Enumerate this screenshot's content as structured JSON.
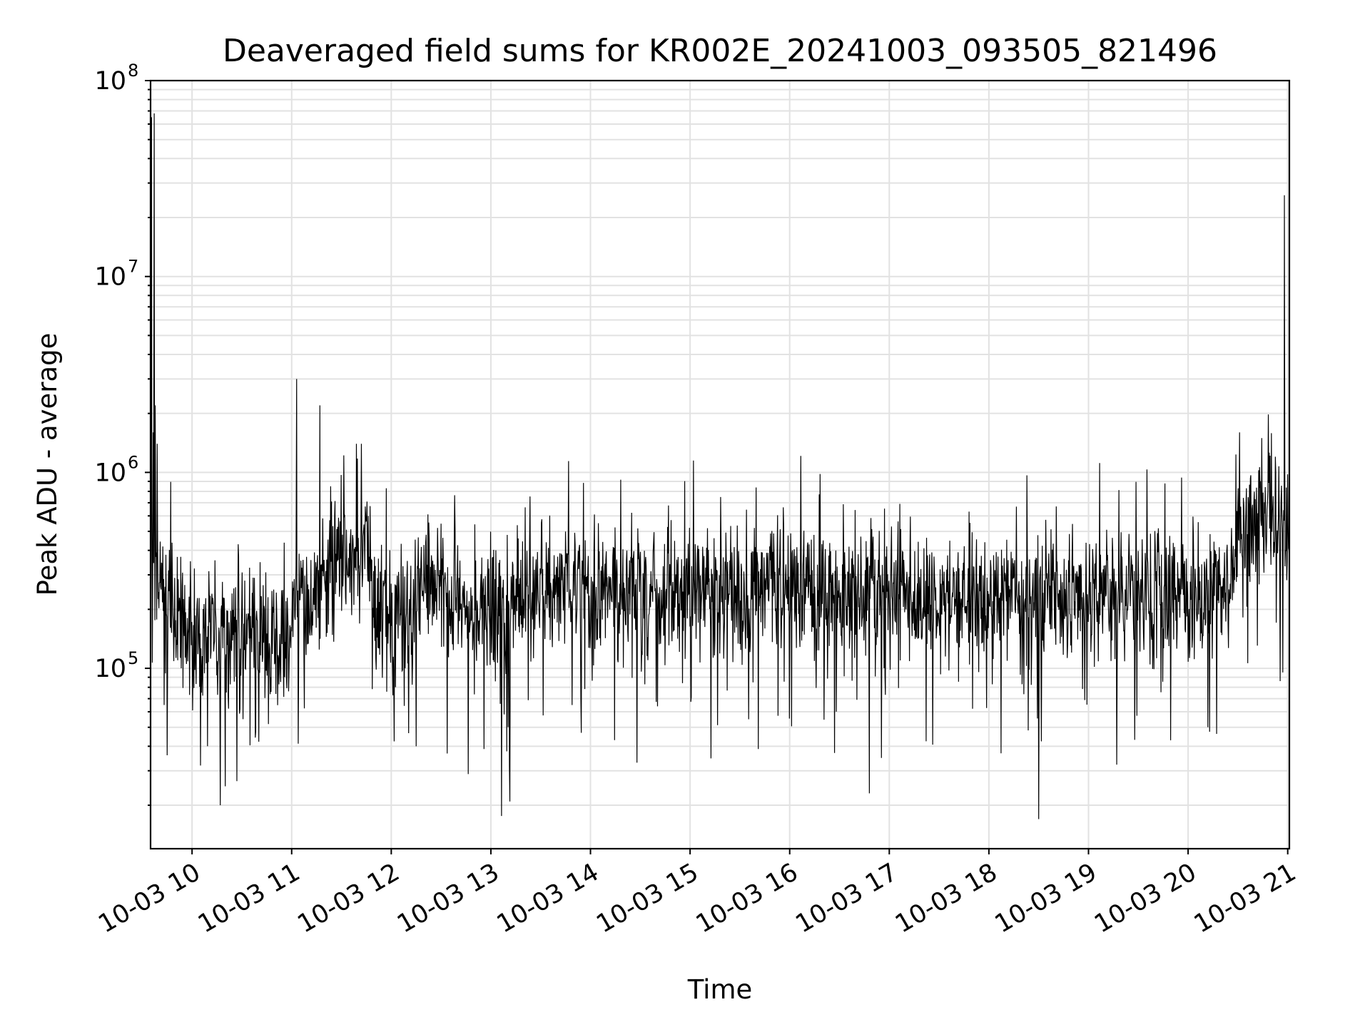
{
  "chart_data": {
    "type": "line",
    "title": "Deaveraged field sums for KR002E_20241003_093505_821496",
    "xlabel": "Time",
    "ylabel": "Peak ADU - average",
    "yscale": "log",
    "ylim": [
      12000,
      100000000
    ],
    "xlim": [
      "10-03 09:35",
      "10-03 21:01"
    ],
    "grid": true,
    "line_color": "#000000",
    "x_ticks": [
      "10-03 10",
      "10-03 11",
      "10-03 12",
      "10-03 13",
      "10-03 14",
      "10-03 15",
      "10-03 16",
      "10-03 17",
      "10-03 18",
      "10-03 19",
      "10-03 20",
      "10-03 21"
    ],
    "y_ticks": [
      {
        "base": "10",
        "exp": "5",
        "value": 100000
      },
      {
        "base": "10",
        "exp": "6",
        "value": 1000000
      },
      {
        "base": "10",
        "exp": "7",
        "value": 10000000
      },
      {
        "base": "10",
        "exp": "8",
        "value": 100000000
      }
    ],
    "series": [
      {
        "x": [
          "10-03 09:35",
          "10-03 09:36",
          "10-03 09:37",
          "10-03 09:38",
          "10-03 09:39",
          "10-03 09:40",
          "10-03 09:45",
          "10-03 09:50",
          "10-03 09:55",
          "10-03 10:00",
          "10-03 10:05",
          "10-03 10:10",
          "10-03 10:15",
          "10-03 10:17",
          "10-03 10:20",
          "10-03 10:30",
          "10-03 10:40",
          "10-03 10:50",
          "10-03 11:00",
          "10-03 11:03",
          "10-03 11:10",
          "10-03 11:15",
          "10-03 11:20",
          "10-03 11:30",
          "10-03 11:40",
          "10-03 11:45",
          "10-03 11:50",
          "10-03 12:00",
          "10-03 12:30",
          "10-03 12:45",
          "10-03 13:00",
          "10-03 13:30",
          "10-03 14:00",
          "10-03 15:00",
          "10-03 16:00",
          "10-03 17:00",
          "10-03 18:00",
          "10-03 18:30",
          "10-03 19:00",
          "10-03 20:00",
          "10-03 20:30",
          "10-03 20:40",
          "10-03 20:50",
          "10-03 20:58",
          "10-03 21:00",
          "10-03 21:01"
        ],
        "values": [
          400000,
          65000000,
          1600000,
          68000000,
          300000,
          1400000,
          250000,
          200000,
          130000,
          150000,
          120000,
          140000,
          160000,
          20000,
          150000,
          140000,
          130000,
          200000,
          250000,
          3000000,
          400000,
          2200000,
          350000,
          400000,
          500000,
          1400000,
          350000,
          180000,
          300000,
          250000,
          180000,
          230000,
          260000,
          250000,
          240000,
          240000,
          230000,
          18000,
          230000,
          240000,
          300000,
          1600000,
          600000,
          26000000,
          600000,
          550000
        ]
      }
    ]
  }
}
